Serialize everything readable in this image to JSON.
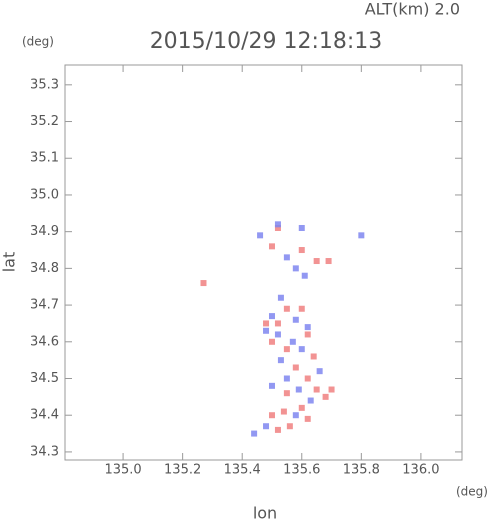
{
  "chart_data": {
    "type": "scatter",
    "title": "2015/10/29 12:18:13",
    "subtitle": "ALT(km) 2.0",
    "x_label": "lon",
    "y_label": "lat",
    "x_unit": "(deg)",
    "y_unit": "(deg)",
    "xlim": [
      134.805,
      136.138
    ],
    "ylim": [
      34.278,
      35.354
    ],
    "xticks": [
      {
        "value": 135.0,
        "label": "135.0"
      },
      {
        "value": 135.2,
        "label": "135.2"
      },
      {
        "value": 135.4,
        "label": "135.4"
      },
      {
        "value": 135.6,
        "label": "135.6"
      },
      {
        "value": 135.8,
        "label": "135.8"
      },
      {
        "value": 136.0,
        "label": "136.0"
      }
    ],
    "yticks": [
      {
        "value": 34.3,
        "label": "34.3"
      },
      {
        "value": 34.4,
        "label": "34.4"
      },
      {
        "value": 34.5,
        "label": "34.5"
      },
      {
        "value": 34.6,
        "label": "34.6"
      },
      {
        "value": 34.7,
        "label": "34.7"
      },
      {
        "value": 34.8,
        "label": "34.8"
      },
      {
        "value": 34.9,
        "label": "34.9"
      },
      {
        "value": 35.0,
        "label": "35.0"
      },
      {
        "value": 35.1,
        "label": "35.1"
      },
      {
        "value": 35.2,
        "label": "35.2"
      },
      {
        "value": 35.3,
        "label": "35.3"
      }
    ],
    "series": [
      {
        "color": "#f08080",
        "x": [
          135.52,
          135.5,
          135.65,
          135.69,
          135.6,
          135.27,
          135.55,
          135.6,
          135.52,
          135.62,
          135.55,
          135.5,
          135.64,
          135.58,
          135.62,
          135.55,
          135.65,
          135.68,
          135.6,
          135.54,
          135.5,
          135.56,
          135.52,
          135.62,
          135.7,
          135.48
        ],
        "values": [
          34.91,
          34.86,
          34.82,
          34.82,
          34.85,
          34.76,
          34.69,
          34.69,
          34.65,
          34.62,
          34.58,
          34.6,
          34.56,
          34.53,
          34.5,
          34.46,
          34.47,
          34.45,
          34.42,
          34.41,
          34.4,
          34.37,
          34.36,
          34.39,
          34.47,
          34.65
        ]
      },
      {
        "color": "#7f86f0",
        "x": [
          135.52,
          135.6,
          135.8,
          135.46,
          135.58,
          135.61,
          135.55,
          135.53,
          135.5,
          135.58,
          135.62,
          135.52,
          135.57,
          135.48,
          135.53,
          135.6,
          135.55,
          135.5,
          135.63,
          135.58,
          135.48,
          135.44,
          135.66,
          135.59
        ],
        "values": [
          34.92,
          34.91,
          34.89,
          34.89,
          34.8,
          34.78,
          34.83,
          34.72,
          34.67,
          34.66,
          34.64,
          34.62,
          34.6,
          34.63,
          34.55,
          34.58,
          34.5,
          34.48,
          34.44,
          34.4,
          34.37,
          34.35,
          34.52,
          34.47
        ]
      }
    ]
  }
}
